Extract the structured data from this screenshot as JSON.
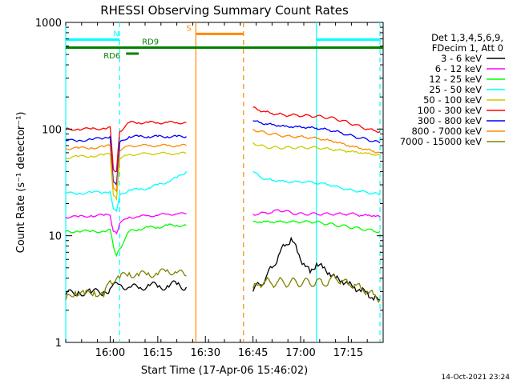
{
  "chart_data": {
    "type": "line",
    "title": "RHESSI Observing Summary Count Rates",
    "xlabel": "Start Time (17-Apr-06 15:46:02)",
    "ylabel": "Count Rate (s⁻¹ detector⁻¹)",
    "yscale": "log",
    "ylim": [
      1,
      1000
    ],
    "xlim_minutes": [
      0,
      100
    ],
    "x_ticks": [
      {
        "label": "16:00",
        "minute": 14
      },
      {
        "label": "16:15",
        "minute": 29
      },
      {
        "label": "16:30",
        "minute": 44
      },
      {
        "label": "16:45",
        "minute": 59
      },
      {
        "label": "17:00",
        "minute": 74
      },
      {
        "label": "17:15",
        "minute": 89
      }
    ],
    "y_ticks": [
      {
        "label": "1",
        "value": 1
      },
      {
        "label": "10",
        "value": 10
      },
      {
        "label": "100",
        "value": 100
      },
      {
        "label": "1000",
        "value": 1000
      }
    ],
    "legend_header": [
      "Det 1,3,4,5,6,9,",
      "FDecim 1, Att 0"
    ],
    "series": [
      {
        "name": "3 - 6 keV",
        "color": "#000000",
        "x": [
          0,
          4,
          8,
          12,
          14,
          17,
          20,
          23,
          26,
          29,
          32,
          35,
          38,
          40,
          42,
          44,
          46,
          48,
          50,
          52,
          54,
          56,
          58,
          59,
          61,
          63,
          65,
          67,
          69,
          71,
          73,
          75,
          77,
          79,
          81,
          83,
          85,
          87,
          89,
          91,
          93,
          95,
          97,
          99
        ],
        "y": [
          2.8,
          3,
          2.9,
          3,
          3.2,
          3.5,
          3.3,
          3.2,
          3.5,
          3.3,
          3.4,
          3.5,
          3.3,
          null,
          null,
          null,
          null,
          null,
          null,
          null,
          null,
          null,
          null,
          3,
          3.5,
          4,
          5,
          6.5,
          8,
          9.5,
          7,
          5.5,
          4.5,
          5.5,
          5,
          4.5,
          4,
          3.8,
          3.5,
          3.3,
          3,
          3,
          2.5,
          2.5
        ]
      },
      {
        "name": "6 - 12 keV",
        "color": "#ff00ff",
        "x": [
          0,
          4,
          8,
          12,
          14,
          15,
          16,
          17,
          20,
          23,
          26,
          29,
          32,
          35,
          38,
          40,
          50,
          58,
          59,
          61,
          63,
          65,
          67,
          69,
          71,
          73,
          75,
          77,
          79,
          81,
          83,
          85,
          87,
          89,
          91,
          93,
          95,
          97,
          99
        ],
        "y": [
          15,
          15,
          15.5,
          15.5,
          15.5,
          11,
          10.5,
          13,
          15,
          15,
          15.5,
          15.5,
          16,
          16,
          16,
          null,
          null,
          null,
          16,
          16,
          16.5,
          16.5,
          17.5,
          17,
          16.5,
          16,
          16,
          16,
          16,
          16,
          16,
          16,
          16,
          16,
          16,
          15.5,
          15.5,
          15.5,
          15
        ]
      },
      {
        "name": "12 - 25 keV",
        "color": "#00ff00",
        "x": [
          0,
          4,
          8,
          12,
          14,
          15,
          16,
          17,
          20,
          23,
          26,
          29,
          32,
          35,
          38,
          40,
          50,
          58,
          59,
          61,
          63,
          65,
          67,
          69,
          71,
          73,
          75,
          77,
          79,
          81,
          83,
          85,
          87,
          89,
          91,
          93,
          95,
          97,
          99
        ],
        "y": [
          11,
          11,
          11,
          11,
          11.5,
          8,
          6.5,
          7.5,
          11,
          11.5,
          12,
          12,
          12.5,
          12.5,
          12.5,
          null,
          null,
          null,
          13.5,
          13.5,
          13.5,
          13.5,
          13.5,
          13.5,
          13.5,
          13.5,
          13.5,
          13.5,
          13.5,
          13,
          13,
          12.5,
          12.5,
          12,
          12,
          11.5,
          11.5,
          11,
          11
        ]
      },
      {
        "name": "25 - 50 keV",
        "color": "#00ffff",
        "x": [
          0,
          4,
          8,
          12,
          14,
          15,
          16,
          17,
          20,
          23,
          26,
          29,
          32,
          35,
          38,
          40,
          50,
          58,
          59,
          61,
          63,
          65,
          67,
          69,
          71,
          73,
          75,
          77,
          79,
          81,
          83,
          85,
          87,
          89,
          91,
          93,
          95,
          97,
          99
        ],
        "y": [
          25,
          25,
          25.5,
          25.5,
          26,
          18,
          17,
          24,
          27,
          27,
          28,
          30,
          32,
          35,
          40,
          null,
          null,
          null,
          40,
          36,
          34,
          33,
          33,
          32,
          32,
          32,
          32,
          32,
          31,
          31,
          30,
          29,
          28,
          27,
          26.5,
          26,
          25.5,
          25,
          24
        ]
      },
      {
        "name": "50 - 100 keV",
        "color": "#cccc00",
        "x": [
          0,
          4,
          8,
          12,
          14,
          15,
          16,
          17,
          20,
          23,
          26,
          29,
          32,
          35,
          38,
          40,
          50,
          58,
          59,
          61,
          63,
          65,
          67,
          69,
          71,
          73,
          75,
          77,
          79,
          81,
          83,
          85,
          87,
          89,
          91,
          93,
          95,
          97,
          99
        ],
        "y": [
          54,
          55,
          56,
          57,
          58,
          24,
          22,
          52,
          58,
          58,
          59,
          59,
          59,
          59,
          59,
          null,
          null,
          null,
          75,
          70,
          68,
          67,
          67,
          67,
          67,
          67,
          67,
          67,
          67,
          66,
          65,
          64,
          63,
          62,
          61,
          60,
          59,
          58,
          57
        ]
      },
      {
        "name": "100 - 300 keV",
        "color": "#ff0000",
        "x": [
          0,
          4,
          8,
          12,
          14,
          15,
          16,
          17,
          20,
          23,
          26,
          29,
          32,
          35,
          38,
          40,
          50,
          58,
          59,
          61,
          63,
          65,
          67,
          69,
          71,
          73,
          75,
          77,
          79,
          81,
          83,
          85,
          87,
          89,
          91,
          93,
          95,
          97,
          99
        ],
        "y": [
          100,
          100,
          100,
          102,
          105,
          42,
          40,
          95,
          115,
          115,
          115,
          115,
          115,
          115,
          115,
          null,
          null,
          null,
          160,
          150,
          145,
          140,
          138,
          135,
          135,
          135,
          133,
          133,
          132,
          130,
          128,
          125,
          120,
          115,
          110,
          105,
          100,
          97,
          95
        ]
      },
      {
        "name": "300 - 800 keV",
        "color": "#0000ff",
        "x": [
          0,
          4,
          8,
          12,
          14,
          15,
          16,
          17,
          20,
          23,
          26,
          29,
          32,
          35,
          38,
          40,
          50,
          58,
          59,
          61,
          63,
          65,
          67,
          69,
          71,
          73,
          75,
          77,
          79,
          81,
          83,
          85,
          87,
          89,
          91,
          93,
          95,
          97,
          99
        ],
        "y": [
          78,
          78,
          80,
          82,
          85,
          32,
          30,
          75,
          85,
          85,
          85,
          85,
          85,
          85,
          85,
          null,
          null,
          null,
          120,
          115,
          112,
          110,
          108,
          106,
          105,
          105,
          104,
          103,
          102,
          100,
          98,
          95,
          92,
          88,
          85,
          82,
          80,
          77,
          74
        ]
      },
      {
        "name": "800 - 7000 keV",
        "color": "#ff8800",
        "x": [
          0,
          4,
          8,
          12,
          14,
          15,
          16,
          17,
          20,
          23,
          26,
          29,
          32,
          35,
          38,
          40,
          50,
          58,
          59,
          61,
          63,
          65,
          67,
          69,
          71,
          73,
          75,
          77,
          79,
          81,
          83,
          85,
          87,
          89,
          91,
          93,
          95,
          97,
          99
        ],
        "y": [
          66,
          66,
          67,
          68,
          70,
          28,
          26,
          62,
          70,
          70,
          70,
          70,
          70,
          70,
          70,
          null,
          null,
          null,
          100,
          95,
          92,
          90,
          88,
          86,
          85,
          85,
          84,
          83,
          82,
          80,
          78,
          76,
          73,
          70,
          68,
          66,
          64,
          62,
          60
        ]
      },
      {
        "name": "7000 - 15000 keV",
        "color": "#808000",
        "x": [
          0,
          3,
          6,
          9,
          12,
          14,
          17,
          20,
          23,
          26,
          29,
          32,
          35,
          38,
          40,
          50,
          58,
          59,
          61,
          63,
          65,
          67,
          69,
          71,
          73,
          75,
          77,
          79,
          81,
          83,
          85,
          87,
          89,
          91,
          93,
          95,
          97,
          99
        ],
        "y": [
          2.5,
          3,
          2.8,
          3,
          2.7,
          3.8,
          4,
          4.5,
          4.2,
          4.5,
          4.3,
          4.8,
          4.5,
          4.2,
          null,
          null,
          null,
          3.2,
          3.5,
          3.8,
          3.5,
          3.8,
          3.5,
          3.8,
          3.5,
          3.8,
          3.5,
          3.8,
          3.5,
          3.8,
          4,
          3.8,
          3.5,
          3.5,
          3.2,
          3,
          2.8,
          2.5
        ]
      }
    ],
    "intervals": [
      {
        "label": "N",
        "color": "#00ffff",
        "start_minute": 0,
        "end_minute": 17,
        "level": 690
      },
      {
        "label": "",
        "color": "#00ffff",
        "start_minute": 79,
        "end_minute": 99,
        "level": 690
      },
      {
        "label": "S",
        "color": "#ff8800",
        "start_minute": 41,
        "end_minute": 56,
        "level": 780
      },
      {
        "label": "",
        "color": "#008000",
        "start_minute": 0,
        "end_minute": 100,
        "level": 580
      },
      {
        "label": "RD6",
        "color": "#008000",
        "start_minute": 19,
        "end_minute": 23,
        "level": 510
      },
      {
        "label": "RD9",
        "color": "#008000",
        "start_minute": 23,
        "end_minute": 23,
        "level": 580
      }
    ],
    "vertical_markers": [
      {
        "minute": 0,
        "color": "#00ffff",
        "style": "solid"
      },
      {
        "minute": 17,
        "color": "#00ffff",
        "style": "dashed"
      },
      {
        "minute": 79,
        "color": "#00ffff",
        "style": "solid"
      },
      {
        "minute": 99,
        "color": "#00ffff",
        "style": "dashed"
      },
      {
        "minute": 41,
        "color": "#ff8800",
        "style": "solid"
      },
      {
        "minute": 56,
        "color": "#ff8800",
        "style": "dashed"
      }
    ],
    "timestamp": "14-Oct-2021 23:24"
  }
}
